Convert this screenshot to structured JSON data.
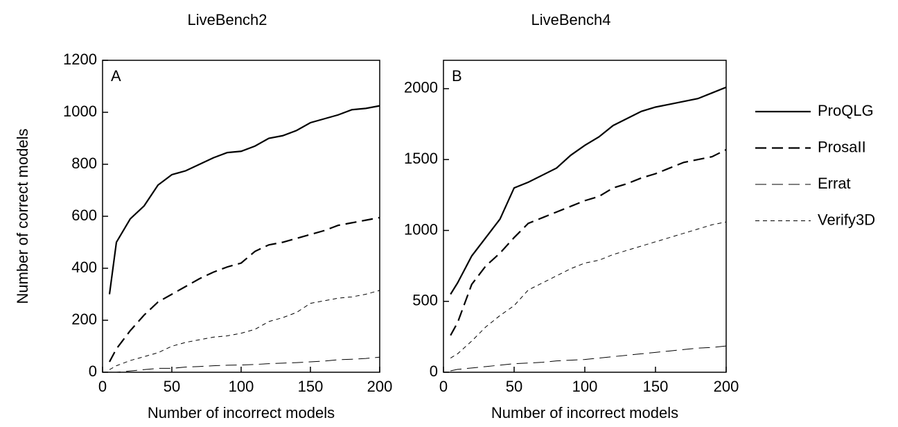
{
  "chart_data": [
    {
      "type": "line",
      "title": "LiveBench2",
      "panel_label": "A",
      "x_label": "Number of incorrect models",
      "y_label": "Number of correct models",
      "xlim": [
        0,
        200
      ],
      "xticks": [
        0,
        50,
        100,
        150,
        200
      ],
      "ylim": [
        0,
        1200
      ],
      "yticks": [
        0,
        200,
        400,
        600,
        800,
        1000,
        1200
      ],
      "legend": "right",
      "x": [
        5,
        10,
        20,
        30,
        40,
        50,
        60,
        70,
        80,
        90,
        100,
        110,
        120,
        130,
        140,
        150,
        160,
        170,
        180,
        190,
        200
      ],
      "series": [
        {
          "name": "ProQLG",
          "color": "#000000",
          "linestyle": "solid",
          "linewidth": 2.2,
          "values": [
            300,
            500,
            590,
            640,
            720,
            760,
            775,
            800,
            825,
            845,
            850,
            870,
            900,
            910,
            930,
            960,
            975,
            990,
            1010,
            1015,
            1025
          ]
        },
        {
          "name": "ProsaII",
          "color": "#000000",
          "linestyle": "dashed",
          "linewidth": 2.2,
          "values": [
            40,
            90,
            160,
            220,
            270,
            300,
            330,
            360,
            385,
            405,
            420,
            465,
            490,
            500,
            515,
            530,
            545,
            565,
            575,
            585,
            595
          ]
        },
        {
          "name": "Errat",
          "color": "#000000",
          "linestyle": "dashed",
          "linewidth": 1,
          "values": [
            0,
            0,
            5,
            10,
            15,
            15,
            20,
            22,
            25,
            27,
            28,
            30,
            33,
            35,
            37,
            40,
            43,
            48,
            50,
            53,
            58
          ]
        },
        {
          "name": "Verify3D",
          "color": "#000000",
          "linestyle": "dotted",
          "linewidth": 1,
          "values": [
            10,
            25,
            45,
            60,
            75,
            100,
            115,
            125,
            135,
            140,
            150,
            165,
            195,
            210,
            230,
            265,
            275,
            285,
            290,
            300,
            315
          ]
        }
      ]
    },
    {
      "type": "line",
      "title": "LiveBench4",
      "panel_label": "B",
      "x_label": "Number of incorrect models",
      "xlim": [
        0,
        200
      ],
      "xticks": [
        0,
        50,
        100,
        150,
        200
      ],
      "ylim": [
        0,
        2200
      ],
      "yticks": [
        0,
        500,
        1000,
        1500,
        2000
      ],
      "x": [
        5,
        10,
        20,
        30,
        40,
        50,
        60,
        70,
        80,
        90,
        100,
        110,
        120,
        130,
        140,
        150,
        160,
        170,
        180,
        190,
        200
      ],
      "series": [
        {
          "name": "ProQLG",
          "color": "#000000",
          "linestyle": "solid",
          "linewidth": 2.2,
          "values": [
            550,
            630,
            820,
            950,
            1080,
            1300,
            1340,
            1390,
            1440,
            1530,
            1600,
            1660,
            1740,
            1790,
            1840,
            1870,
            1890,
            1910,
            1930,
            1970,
            2010
          ]
        },
        {
          "name": "ProsaII",
          "color": "#000000",
          "linestyle": "dashed",
          "linewidth": 2.2,
          "values": [
            260,
            350,
            620,
            750,
            840,
            950,
            1050,
            1090,
            1130,
            1170,
            1210,
            1240,
            1300,
            1330,
            1370,
            1400,
            1440,
            1480,
            1500,
            1520,
            1570
          ]
        },
        {
          "name": "Errat",
          "color": "#000000",
          "linestyle": "dashed",
          "linewidth": 1,
          "values": [
            10,
            20,
            30,
            40,
            50,
            60,
            65,
            70,
            80,
            85,
            90,
            100,
            110,
            120,
            130,
            140,
            150,
            160,
            170,
            175,
            185
          ]
        },
        {
          "name": "Verify3D",
          "color": "#000000",
          "linestyle": "dotted",
          "linewidth": 1,
          "values": [
            100,
            130,
            220,
            320,
            400,
            470,
            580,
            630,
            680,
            730,
            770,
            790,
            830,
            860,
            890,
            920,
            950,
            980,
            1010,
            1040,
            1060
          ]
        }
      ]
    }
  ]
}
